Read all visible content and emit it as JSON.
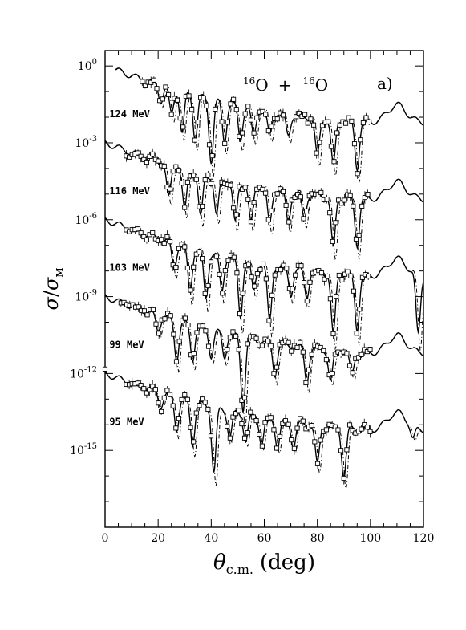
{
  "chart_data": {
    "type": "scatter",
    "title": "",
    "reaction": {
      "a": "16",
      "sym_a": "O",
      "plus": "+",
      "b": "16",
      "sym_b": "O"
    },
    "panel_label": "a)",
    "xlabel": {
      "symbol": "θ",
      "subscript": "c.m.",
      "unit": "(deg)"
    },
    "ylabel": {
      "symbol": "σ",
      "over": "/",
      "denominator": "σ",
      "subscript": "M"
    },
    "xlim": [
      0,
      120
    ],
    "y_scale": "log",
    "ylim_exp": [
      -18,
      0.6
    ],
    "xticks": [
      "0",
      "20",
      "40",
      "60",
      "80",
      "100",
      "120"
    ],
    "yticks": [
      {
        "base": "10",
        "exp": "0",
        "value": 0
      },
      {
        "base": "10",
        "exp": "-3",
        "value": -3
      },
      {
        "base": "10",
        "exp": "-6",
        "value": -6
      },
      {
        "base": "10",
        "exp": "-9",
        "value": -9
      },
      {
        "base": "10",
        "exp": "-12",
        "value": -12
      },
      {
        "base": "10",
        "exp": "-15",
        "value": -15
      }
    ],
    "series": [
      {
        "name": "124 MeV",
        "offset": 0,
        "start": 4,
        "minima": [
          [
            21,
            0.6
          ],
          [
            25,
            1.0
          ],
          [
            29,
            1.6
          ],
          [
            34,
            1.7
          ],
          [
            40,
            2.4
          ],
          [
            45,
            1.5
          ],
          [
            51,
            1.3
          ],
          [
            56,
            1.1
          ],
          [
            62,
            0.9
          ],
          [
            69,
            0.8
          ],
          [
            80,
            1.5
          ],
          [
            86,
            1.8
          ],
          [
            95,
            1.8
          ]
        ],
        "data_x": [
          [
            14,
            42
          ],
          [
            44,
            68
          ],
          [
            72,
            100
          ]
        ]
      },
      {
        "name": "116 MeV",
        "offset": -3,
        "start": 0,
        "minima": [
          [
            24,
            1.3
          ],
          [
            30,
            1.6
          ],
          [
            36,
            1.7
          ],
          [
            42,
            1.5
          ],
          [
            49,
            1.6
          ],
          [
            55,
            1.5
          ],
          [
            62,
            1.4
          ],
          [
            69,
            1.2
          ],
          [
            75,
            1.0
          ],
          [
            86,
            2.0
          ],
          [
            95,
            1.8
          ]
        ],
        "data_x": [
          [
            8,
            40
          ],
          [
            44,
            100
          ]
        ]
      },
      {
        "name": "103 MeV",
        "offset": -6,
        "start": 0,
        "minima": [
          [
            26,
            1.0
          ],
          [
            32,
            1.7
          ],
          [
            38,
            1.8
          ],
          [
            44,
            1.4
          ],
          [
            51,
            2.2
          ],
          [
            56,
            1.1
          ],
          [
            62,
            2.2
          ],
          [
            70,
            1.0
          ],
          [
            76,
            1.0
          ],
          [
            86,
            2.4
          ],
          [
            95,
            2.1
          ],
          [
            118,
            2.3
          ]
        ],
        "data_x": [
          [
            8,
            40
          ],
          [
            42,
            100
          ]
        ]
      },
      {
        "name": "99 MeV",
        "offset": -9,
        "start": 0,
        "minima": [
          [
            20,
            0.6
          ],
          [
            27,
            1.5
          ],
          [
            33,
            1.3
          ],
          [
            40,
            1.0
          ],
          [
            45,
            0.9
          ],
          [
            52,
            2.8
          ],
          [
            64,
            1.2
          ],
          [
            76,
            1.3
          ],
          [
            85,
            1.2
          ],
          [
            93,
            0.9
          ]
        ],
        "data_x": [
          [
            6,
            40
          ],
          [
            46,
            100
          ]
        ]
      },
      {
        "name": "95 MeV",
        "offset": -12,
        "start": 0,
        "minima": [
          [
            21,
            0.5
          ],
          [
            27,
            1.2
          ],
          [
            33,
            1.6
          ],
          [
            41,
            2.5
          ],
          [
            47,
            1.0
          ],
          [
            53,
            1.0
          ],
          [
            59,
            1.0
          ],
          [
            65,
            1.0
          ],
          [
            71,
            0.9
          ],
          [
            80,
            1.5
          ],
          [
            90,
            1.9
          ],
          [
            116,
            0.5
          ]
        ],
        "data_x": [
          [
            0,
            0
          ],
          [
            8,
            40
          ],
          [
            46,
            100
          ]
        ]
      }
    ]
  }
}
